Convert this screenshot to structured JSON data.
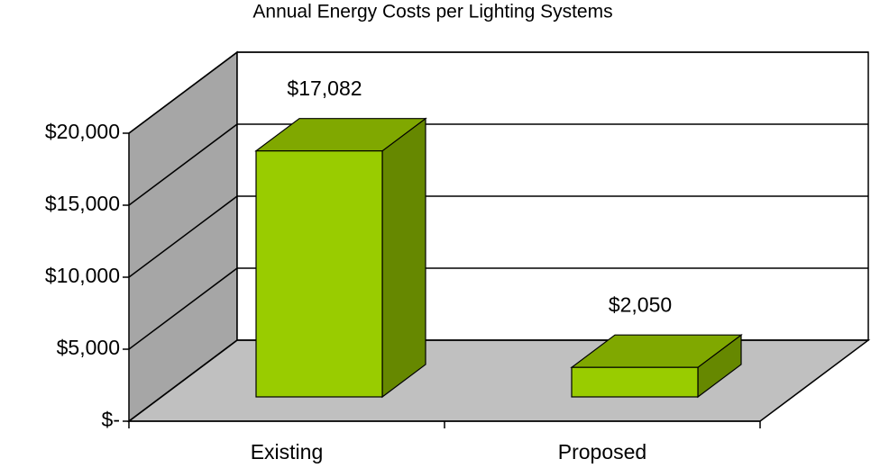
{
  "chart_data": {
    "type": "bar3d",
    "title": "Annual Energy Costs per Lighting Systems",
    "categories": [
      "Existing",
      "Proposed"
    ],
    "values": [
      17082,
      2050
    ],
    "value_labels": [
      "$17,082",
      "$2,050"
    ],
    "color": "#99cc00",
    "ylim": [
      0,
      20000
    ],
    "yticks": [
      {
        "value": 0,
        "label": "$-"
      },
      {
        "value": 5000,
        "label": "$5,000"
      },
      {
        "value": 10000,
        "label": "$10,000"
      },
      {
        "value": 15000,
        "label": "$15,000"
      },
      {
        "value": 20000,
        "label": "$20,000"
      }
    ],
    "grid": true
  }
}
